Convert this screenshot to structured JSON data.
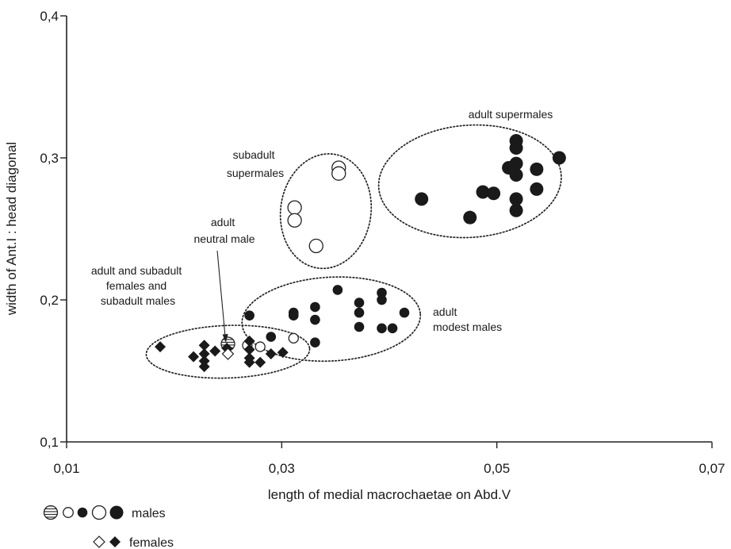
{
  "chart_data": {
    "type": "scatter",
    "xlabel": "length of medial macrochaetae on Abd.V",
    "ylabel": "width of Ant.I : head diagonal",
    "xlim": [
      0.01,
      0.07
    ],
    "ylim": [
      0.1,
      0.4
    ],
    "x_ticks": [
      "0,01",
      "0,03",
      "0,05",
      "0,07"
    ],
    "y_ticks": [
      "0,1",
      "0,2",
      "0,3",
      "0,4"
    ],
    "x_tick_values": [
      0.01,
      0.03,
      0.05,
      0.07
    ],
    "y_tick_values": [
      0.1,
      0.2,
      0.3,
      0.4
    ],
    "grid": false,
    "legend_position": "bottom-left",
    "legend": [
      {
        "label": "males",
        "markers": [
          "hatched-circle",
          "small-open-circle",
          "small-filled-circle",
          "large-open-circle",
          "large-filled-circle"
        ]
      },
      {
        "label": "females",
        "markers": [
          "open-diamond",
          "filled-diamond"
        ]
      }
    ],
    "annotations": [
      {
        "lines": [
          "adult supermales"
        ]
      },
      {
        "lines": [
          "subadult",
          "supermales"
        ]
      },
      {
        "lines": [
          "adult",
          "neutral male"
        ]
      },
      {
        "lines": [
          "adult and subadult",
          "females and",
          "subadult males"
        ]
      },
      {
        "lines": [
          "adult",
          "modest males"
        ]
      }
    ],
    "series": [
      {
        "name": "adult supermales",
        "marker": "large-filled-circle",
        "points": [
          [
            0.043,
            0.271
          ],
          [
            0.0475,
            0.258
          ],
          [
            0.0487,
            0.276
          ],
          [
            0.0497,
            0.275
          ],
          [
            0.0511,
            0.293
          ],
          [
            0.0518,
            0.312
          ],
          [
            0.0518,
            0.307
          ],
          [
            0.0518,
            0.296
          ],
          [
            0.0518,
            0.288
          ],
          [
            0.0518,
            0.271
          ],
          [
            0.0518,
            0.263
          ],
          [
            0.0537,
            0.292
          ],
          [
            0.0537,
            0.278
          ],
          [
            0.0558,
            0.3
          ]
        ]
      },
      {
        "name": "subadult supermales",
        "marker": "large-open-circle",
        "points": [
          [
            0.0312,
            0.265
          ],
          [
            0.0312,
            0.256
          ],
          [
            0.0332,
            0.238
          ],
          [
            0.0353,
            0.293
          ],
          [
            0.0353,
            0.289
          ]
        ]
      },
      {
        "name": "adult modest males",
        "marker": "small-filled-circle",
        "points": [
          [
            0.027,
            0.189
          ],
          [
            0.029,
            0.174
          ],
          [
            0.0311,
            0.191
          ],
          [
            0.0311,
            0.189
          ],
          [
            0.0331,
            0.195
          ],
          [
            0.0331,
            0.186
          ],
          [
            0.0331,
            0.17
          ],
          [
            0.0352,
            0.207
          ],
          [
            0.0372,
            0.198
          ],
          [
            0.0372,
            0.191
          ],
          [
            0.0372,
            0.181
          ],
          [
            0.0393,
            0.205
          ],
          [
            0.0393,
            0.2
          ],
          [
            0.0393,
            0.18
          ],
          [
            0.0403,
            0.18
          ],
          [
            0.0414,
            0.191
          ]
        ]
      },
      {
        "name": "subadult males",
        "marker": "small-open-circle",
        "points": [
          [
            0.028,
            0.167
          ],
          [
            0.0311,
            0.173
          ],
          [
            0.0268,
            0.168
          ]
        ]
      },
      {
        "name": "adult neutral male",
        "marker": "hatched-circle",
        "points": [
          [
            0.025,
            0.169
          ]
        ]
      },
      {
        "name": "adult females",
        "marker": "filled-diamond",
        "points": [
          [
            0.0187,
            0.167
          ],
          [
            0.0218,
            0.16
          ],
          [
            0.0228,
            0.168
          ],
          [
            0.0228,
            0.162
          ],
          [
            0.0228,
            0.157
          ],
          [
            0.0228,
            0.153
          ],
          [
            0.0238,
            0.164
          ],
          [
            0.0249,
            0.166
          ],
          [
            0.027,
            0.171
          ],
          [
            0.027,
            0.165
          ],
          [
            0.027,
            0.159
          ],
          [
            0.027,
            0.156
          ],
          [
            0.028,
            0.156
          ],
          [
            0.029,
            0.162
          ],
          [
            0.0301,
            0.163
          ]
        ]
      },
      {
        "name": "subadult females",
        "marker": "open-diamond",
        "points": [
          [
            0.025,
            0.162
          ]
        ]
      }
    ],
    "clusters": [
      {
        "name": "adult supermales",
        "cx": 0.0475,
        "cy": 0.2835,
        "rx": 0.0085,
        "ry": 0.0395,
        "rotate": -4
      },
      {
        "name": "subadult supermales",
        "cx": 0.0341,
        "cy": 0.2625,
        "rx": 0.0042,
        "ry": 0.0405,
        "rotate": 8
      },
      {
        "name": "adult modest males",
        "cx": 0.0346,
        "cy": 0.1865,
        "rx": 0.0083,
        "ry": 0.0295,
        "rotate": -3
      },
      {
        "name": "adult and subadult females and subadult males",
        "cx": 0.025,
        "cy": 0.1635,
        "rx": 0.0076,
        "ry": 0.0185,
        "rotate": -2
      }
    ]
  }
}
